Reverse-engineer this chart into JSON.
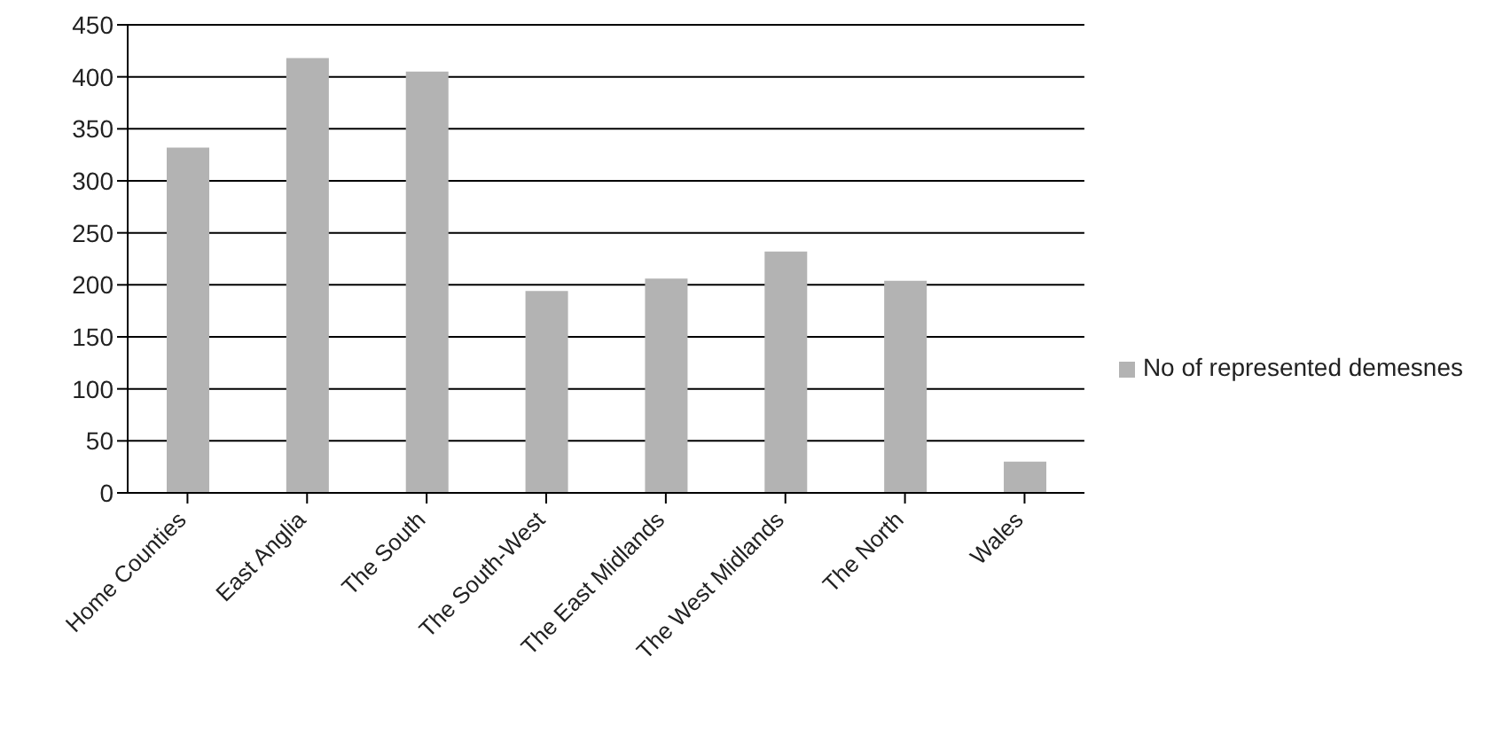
{
  "chart_data": {
    "type": "bar",
    "categories": [
      "Home Counties",
      "East Anglia",
      "The South",
      "The South-West",
      "The East Midlands",
      "The West Midlands",
      "The North",
      "Wales"
    ],
    "series": [
      {
        "name": "No of represented demesnes",
        "color": "#b3b3b3",
        "values": [
          332,
          418,
          405,
          194,
          206,
          232,
          204,
          30
        ]
      }
    ],
    "ylim": [
      0,
      450
    ],
    "yticks": [
      0,
      50,
      100,
      150,
      200,
      250,
      300,
      350,
      400,
      450
    ],
    "grid": "y",
    "legend": "right"
  }
}
